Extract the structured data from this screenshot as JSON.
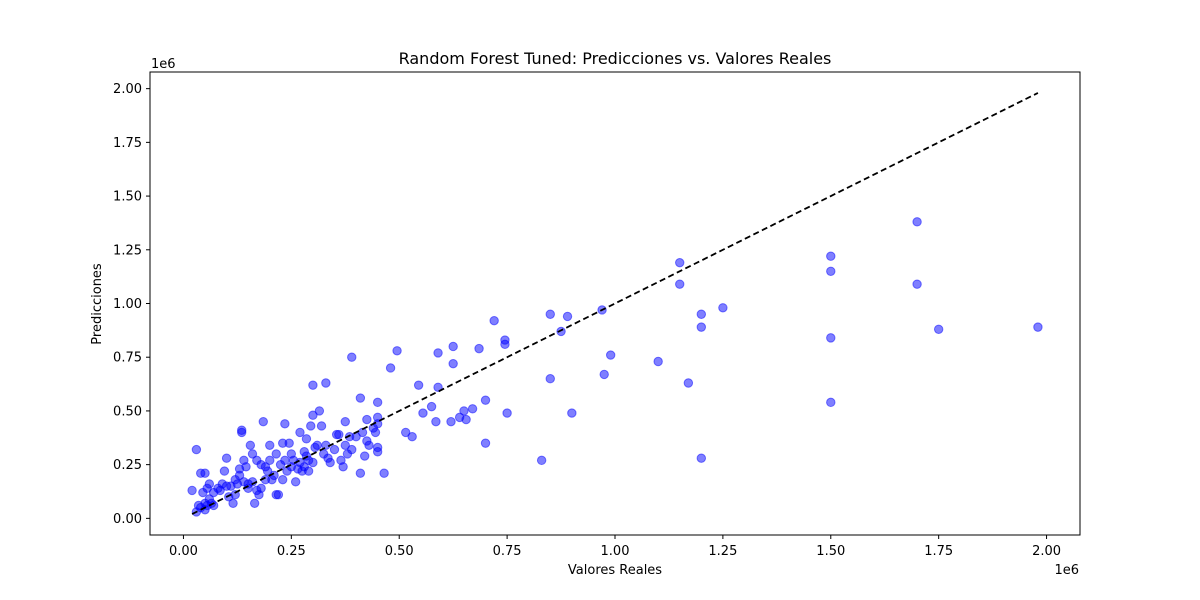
{
  "chart_data": {
    "type": "scatter",
    "title": "Random Forest Tuned: Predicciones vs. Valores Reales",
    "xlabel": "Valores Reales",
    "ylabel": "Predicciones",
    "x_multiplier": "1e6",
    "y_multiplier": "1e6",
    "xlim": [
      -0.0775,
      2.0775
    ],
    "ylim": [
      -0.0775,
      2.0775
    ],
    "xticks": [
      0.0,
      0.25,
      0.5,
      0.75,
      1.0,
      1.25,
      1.5,
      1.75,
      2.0
    ],
    "xtick_labels": [
      "0.00",
      "0.25",
      "0.50",
      "0.75",
      "1.00",
      "1.25",
      "1.50",
      "1.75",
      "2.00"
    ],
    "yticks": [
      0.0,
      0.25,
      0.5,
      0.75,
      1.0,
      1.25,
      1.5,
      1.75,
      2.0
    ],
    "ytick_labels": [
      "0.00",
      "0.25",
      "0.50",
      "0.75",
      "1.00",
      "1.25",
      "1.50",
      "1.75",
      "2.00"
    ],
    "grid": false,
    "point_color": "#0000ff",
    "point_opacity": 0.5,
    "reference_line": {
      "x": [
        0.02,
        1.98
      ],
      "y": [
        0.02,
        1.98
      ],
      "style": "dashed",
      "color": "#000000"
    },
    "series": [
      {
        "name": "Predicciones",
        "points": [
          [
            0.02,
            0.13
          ],
          [
            0.03,
            0.32
          ],
          [
            0.03,
            0.03
          ],
          [
            0.035,
            0.06
          ],
          [
            0.04,
            0.21
          ],
          [
            0.04,
            0.05
          ],
          [
            0.045,
            0.12
          ],
          [
            0.05,
            0.21
          ],
          [
            0.05,
            0.07
          ],
          [
            0.05,
            0.04
          ],
          [
            0.055,
            0.14
          ],
          [
            0.055,
            0.06
          ],
          [
            0.06,
            0.16
          ],
          [
            0.06,
            0.09
          ],
          [
            0.065,
            0.07
          ],
          [
            0.07,
            0.12
          ],
          [
            0.07,
            0.06
          ],
          [
            0.08,
            0.14
          ],
          [
            0.085,
            0.13
          ],
          [
            0.09,
            0.16
          ],
          [
            0.095,
            0.22
          ],
          [
            0.1,
            0.28
          ],
          [
            0.1,
            0.15
          ],
          [
            0.105,
            0.1
          ],
          [
            0.11,
            0.15
          ],
          [
            0.115,
            0.07
          ],
          [
            0.12,
            0.18
          ],
          [
            0.12,
            0.11
          ],
          [
            0.125,
            0.16
          ],
          [
            0.13,
            0.23
          ],
          [
            0.13,
            0.2
          ],
          [
            0.135,
            0.41
          ],
          [
            0.135,
            0.4
          ],
          [
            0.14,
            0.27
          ],
          [
            0.14,
            0.17
          ],
          [
            0.145,
            0.24
          ],
          [
            0.15,
            0.16
          ],
          [
            0.15,
            0.14
          ],
          [
            0.155,
            0.34
          ],
          [
            0.16,
            0.3
          ],
          [
            0.16,
            0.17
          ],
          [
            0.165,
            0.07
          ],
          [
            0.17,
            0.27
          ],
          [
            0.17,
            0.13
          ],
          [
            0.175,
            0.11
          ],
          [
            0.18,
            0.25
          ],
          [
            0.18,
            0.14
          ],
          [
            0.185,
            0.45
          ],
          [
            0.19,
            0.24
          ],
          [
            0.19,
            0.18
          ],
          [
            0.195,
            0.22
          ],
          [
            0.2,
            0.34
          ],
          [
            0.2,
            0.27
          ],
          [
            0.205,
            0.18
          ],
          [
            0.21,
            0.2
          ],
          [
            0.215,
            0.3
          ],
          [
            0.215,
            0.11
          ],
          [
            0.22,
            0.11
          ],
          [
            0.225,
            0.25
          ],
          [
            0.23,
            0.35
          ],
          [
            0.23,
            0.18
          ],
          [
            0.235,
            0.44
          ],
          [
            0.235,
            0.27
          ],
          [
            0.24,
            0.22
          ],
          [
            0.245,
            0.35
          ],
          [
            0.25,
            0.3
          ],
          [
            0.25,
            0.24
          ],
          [
            0.255,
            0.27
          ],
          [
            0.26,
            0.17
          ],
          [
            0.265,
            0.23
          ],
          [
            0.27,
            0.4
          ],
          [
            0.27,
            0.26
          ],
          [
            0.275,
            0.22
          ],
          [
            0.28,
            0.31
          ],
          [
            0.28,
            0.24
          ],
          [
            0.285,
            0.37
          ],
          [
            0.285,
            0.29
          ],
          [
            0.29,
            0.27
          ],
          [
            0.29,
            0.22
          ],
          [
            0.295,
            0.43
          ],
          [
            0.3,
            0.48
          ],
          [
            0.3,
            0.62
          ],
          [
            0.3,
            0.26
          ],
          [
            0.305,
            0.33
          ],
          [
            0.31,
            0.34
          ],
          [
            0.315,
            0.5
          ],
          [
            0.32,
            0.43
          ],
          [
            0.325,
            0.3
          ],
          [
            0.33,
            0.63
          ],
          [
            0.33,
            0.34
          ],
          [
            0.335,
            0.28
          ],
          [
            0.34,
            0.26
          ],
          [
            0.35,
            0.32
          ],
          [
            0.355,
            0.39
          ],
          [
            0.36,
            0.39
          ],
          [
            0.365,
            0.27
          ],
          [
            0.37,
            0.24
          ],
          [
            0.375,
            0.45
          ],
          [
            0.375,
            0.34
          ],
          [
            0.38,
            0.3
          ],
          [
            0.385,
            0.38
          ],
          [
            0.39,
            0.75
          ],
          [
            0.39,
            0.32
          ],
          [
            0.4,
            0.38
          ],
          [
            0.41,
            0.56
          ],
          [
            0.41,
            0.21
          ],
          [
            0.415,
            0.4
          ],
          [
            0.42,
            0.29
          ],
          [
            0.425,
            0.46
          ],
          [
            0.425,
            0.36
          ],
          [
            0.43,
            0.34
          ],
          [
            0.44,
            0.42
          ],
          [
            0.445,
            0.4
          ],
          [
            0.45,
            0.54
          ],
          [
            0.45,
            0.47
          ],
          [
            0.45,
            0.44
          ],
          [
            0.45,
            0.33
          ],
          [
            0.45,
            0.31
          ],
          [
            0.465,
            0.21
          ],
          [
            0.48,
            0.7
          ],
          [
            0.495,
            0.78
          ],
          [
            0.515,
            0.4
          ],
          [
            0.53,
            0.38
          ],
          [
            0.545,
            0.62
          ],
          [
            0.555,
            0.49
          ],
          [
            0.575,
            0.52
          ],
          [
            0.585,
            0.45
          ],
          [
            0.59,
            0.77
          ],
          [
            0.59,
            0.61
          ],
          [
            0.62,
            0.45
          ],
          [
            0.625,
            0.8
          ],
          [
            0.625,
            0.72
          ],
          [
            0.64,
            0.47
          ],
          [
            0.65,
            0.5
          ],
          [
            0.655,
            0.46
          ],
          [
            0.67,
            0.51
          ],
          [
            0.685,
            0.79
          ],
          [
            0.7,
            0.55
          ],
          [
            0.7,
            0.35
          ],
          [
            0.72,
            0.92
          ],
          [
            0.745,
            0.83
          ],
          [
            0.745,
            0.81
          ],
          [
            0.75,
            0.49
          ],
          [
            0.83,
            0.27
          ],
          [
            0.85,
            0.95
          ],
          [
            0.85,
            0.65
          ],
          [
            0.875,
            0.87
          ],
          [
            0.89,
            0.94
          ],
          [
            0.9,
            0.49
          ],
          [
            0.97,
            0.97
          ],
          [
            0.975,
            0.67
          ],
          [
            0.99,
            0.76
          ],
          [
            1.1,
            0.73
          ],
          [
            1.15,
            1.19
          ],
          [
            1.15,
            1.09
          ],
          [
            1.17,
            0.63
          ],
          [
            1.2,
            0.95
          ],
          [
            1.2,
            0.89
          ],
          [
            1.2,
            0.28
          ],
          [
            1.25,
            0.98
          ],
          [
            1.5,
            1.22
          ],
          [
            1.5,
            1.15
          ],
          [
            1.5,
            0.84
          ],
          [
            1.5,
            0.54
          ],
          [
            1.7,
            1.38
          ],
          [
            1.7,
            1.09
          ],
          [
            1.75,
            0.88
          ],
          [
            1.98,
            0.89
          ]
        ]
      }
    ]
  }
}
